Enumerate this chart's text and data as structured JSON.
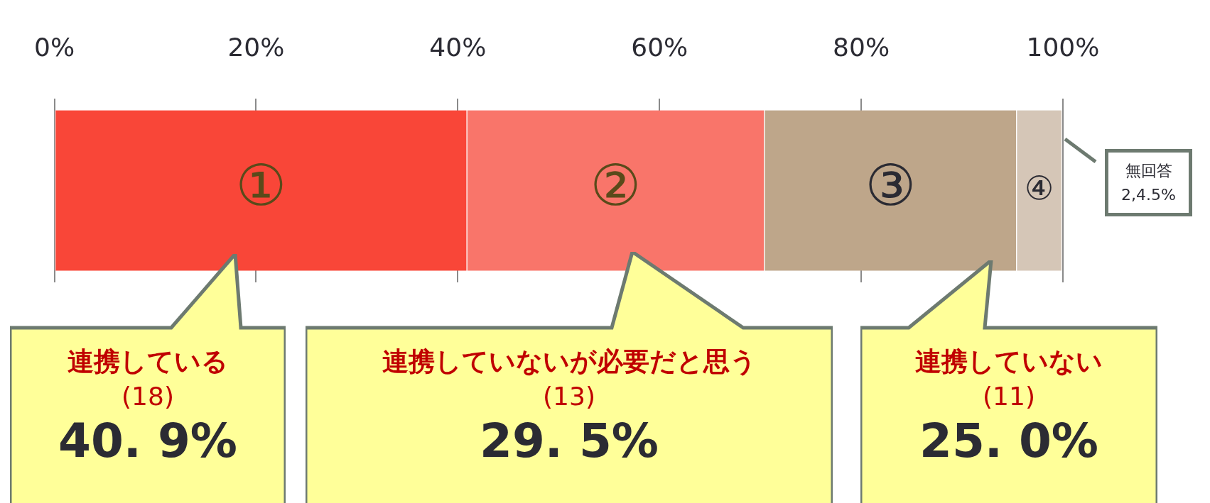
{
  "chart_data": {
    "type": "bar",
    "orientation": "horizontal",
    "stacked": true,
    "categories": [
      null
    ],
    "series": [
      {
        "color": "#f94638",
        "values": [
          40.9
        ]
      },
      {
        "color": "#f9756a",
        "values": [
          29.5
        ]
      },
      {
        "color": "#bea68a",
        "values": [
          25.0
        ]
      },
      {
        "color": "#d5c6b7",
        "values": [
          4.5
        ]
      }
    ],
    "xlim": [
      0,
      100
    ],
    "xticks": [
      {
        "value": 0,
        "label": "0%"
      },
      {
        "value": 20,
        "label": "20%"
      },
      {
        "value": 40,
        "label": "40%"
      },
      {
        "value": 60,
        "label": "60%"
      },
      {
        "value": 80,
        "label": "80%"
      },
      {
        "value": 100,
        "label": "100%"
      }
    ],
    "grid": "x",
    "annotations": [
      "①",
      "②",
      "③",
      "④",
      "連携している",
      "(18)",
      "40. 9%",
      "連携していないが必要だと思う",
      "(13)",
      "29. 5%",
      "連携していない",
      "(11)",
      "25. 0%",
      "無回答",
      "2,4.5%"
    ]
  }
}
